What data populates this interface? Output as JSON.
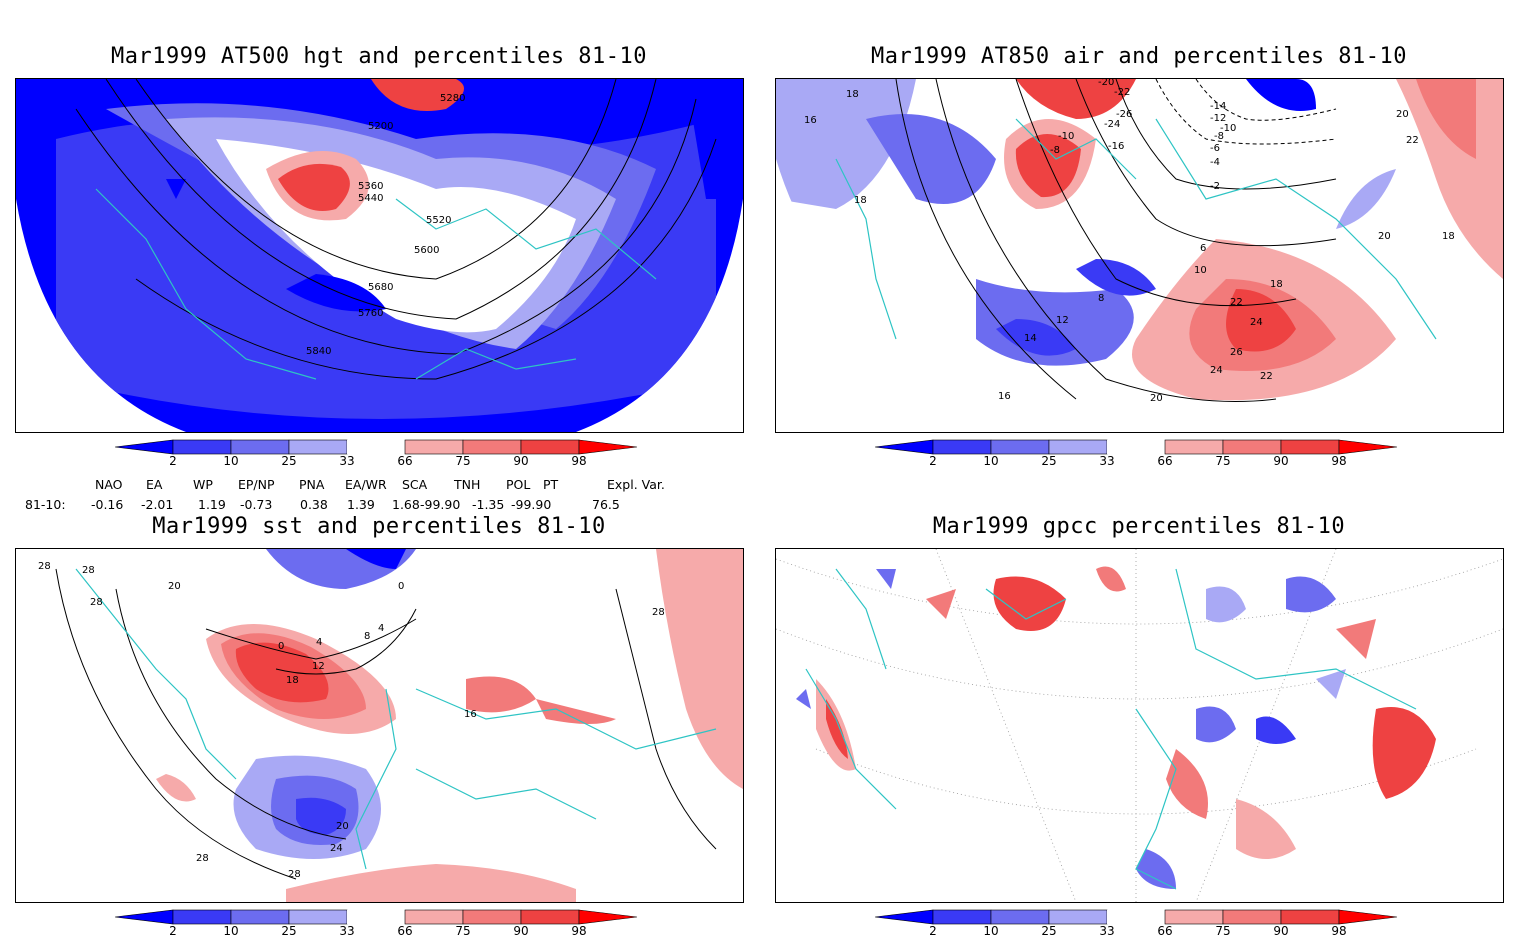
{
  "colors": {
    "blue_2": "#0000ff",
    "blue_10": "#3a3af5",
    "blue_25": "#6c6cf0",
    "blue_33": "#a9a9f5",
    "red_66": "#f6aaaa",
    "red_75": "#f27a7a",
    "red_90": "#ee4242",
    "red_98": "#ff0000",
    "coast": "#2ec4c4",
    "grid": "#999999"
  },
  "colorbar_ticks": [
    "2",
    "10",
    "25",
    "33",
    "66",
    "75",
    "90",
    "98"
  ],
  "panels": [
    {
      "title": "Mar1999 AT500 hgt and percentiles 81-10",
      "contour_labels": [
        "5200",
        "5280",
        "5360",
        "5440",
        "5520",
        "5600",
        "5680",
        "5760",
        "5840"
      ]
    },
    {
      "title": "Mar1999 AT850 air and percentiles 81-10",
      "contour_labels": [
        "18",
        "16",
        "18",
        "-10",
        "-8",
        "-14",
        "-12",
        "-10",
        "-8",
        "-6",
        "-4",
        "-2",
        "6",
        "10",
        "12",
        "14",
        "16",
        "18",
        "22",
        "24",
        "26",
        "24",
        "22",
        "20",
        "20",
        "22",
        "20",
        "18",
        "-20",
        "-22",
        "-24",
        "-26",
        "-16",
        "8"
      ]
    },
    {
      "title": "Mar1999 sst and percentiles 81-10",
      "contour_labels": [
        "28",
        "28",
        "20",
        "28",
        "0",
        "4",
        "8",
        "12",
        "18",
        "20",
        "24",
        "28",
        "28",
        "4",
        "0",
        "16",
        "28"
      ]
    },
    {
      "title": "Mar1999 gpcc percentiles 81-10",
      "contour_labels": []
    }
  ],
  "teleconnection": {
    "headers": [
      "NAO",
      "EA",
      "WP",
      "EP/NP",
      "PNA",
      "EA/WR",
      "SCA",
      "TNH",
      "POL",
      "PT",
      "Expl. Var."
    ],
    "row_label": "81-10:",
    "values": [
      "-0.16",
      "-2.01",
      "1.19",
      "-0.73",
      "0.38",
      "1.39",
      "1.68",
      "-99.90",
      "-1.35",
      "-99.90",
      "76.5"
    ]
  }
}
